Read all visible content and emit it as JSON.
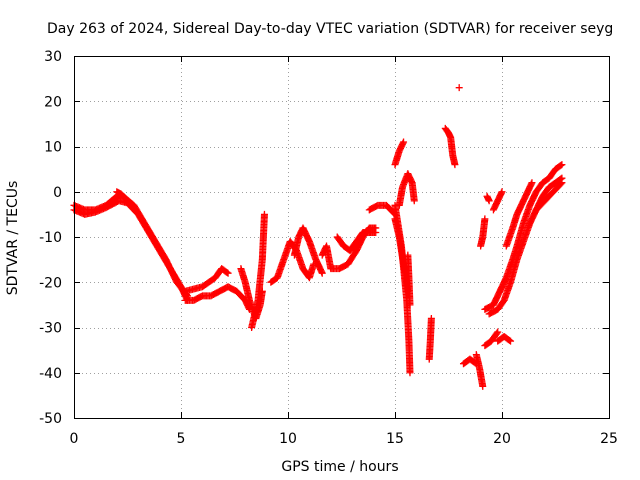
{
  "chart_data": {
    "type": "scatter",
    "title": "Day 263 of 2024, Sidereal Day-to-day VTEC variation (SDTVAR) for receiver seyg",
    "xlabel": "GPS time / hours",
    "ylabel": "SDTVAR / TECUs",
    "xlim": [
      0,
      25
    ],
    "ylim": [
      -50,
      30
    ],
    "xticks": [
      0,
      5,
      10,
      15,
      20,
      25
    ],
    "yticks": [
      -50,
      -40,
      -30,
      -20,
      -10,
      0,
      10,
      20,
      30
    ],
    "grid": true,
    "marker": "+",
    "series": [
      {
        "name": "seyg",
        "color": "#ff0000",
        "tracks": [
          {
            "min_step": 0.05,
            "points": [
              [
                0.0,
                -3.0
              ],
              [
                0.5,
                -4.0
              ],
              [
                1.0,
                -4.0
              ],
              [
                1.5,
                -3.0
              ],
              [
                2.0,
                -1.0
              ],
              [
                2.3,
                -1.0
              ],
              [
                2.8,
                -3.0
              ],
              [
                3.3,
                -7.0
              ],
              [
                3.8,
                -11.0
              ],
              [
                4.3,
                -15.0
              ],
              [
                4.8,
                -20.0
              ],
              [
                5.3,
                -23.0
              ]
            ]
          },
          {
            "min_step": 0.05,
            "points": [
              [
                0.0,
                -4.0
              ],
              [
                0.5,
                -5.0
              ],
              [
                1.0,
                -4.5
              ],
              [
                1.5,
                -3.5
              ],
              [
                2.1,
                -2.0
              ],
              [
                2.5,
                -2.5
              ],
              [
                3.0,
                -5.0
              ],
              [
                3.5,
                -9.0
              ],
              [
                4.0,
                -13.0
              ],
              [
                4.5,
                -17.0
              ],
              [
                5.0,
                -21.0
              ],
              [
                5.3,
                -24.0
              ]
            ]
          },
          {
            "min_step": 0.05,
            "points": [
              [
                2.0,
                0.0
              ],
              [
                2.2,
                -0.5
              ],
              [
                2.4,
                -1.5
              ]
            ]
          },
          {
            "min_step": 0.05,
            "points": [
              [
                5.2,
                -24.0
              ],
              [
                5.6,
                -24.0
              ],
              [
                6.0,
                -23.0
              ],
              [
                6.4,
                -23.0
              ],
              [
                6.8,
                -22.0
              ],
              [
                7.2,
                -21.0
              ],
              [
                7.6,
                -22.0
              ],
              [
                8.0,
                -24.0
              ],
              [
                8.2,
                -26.0
              ]
            ]
          },
          {
            "min_step": 0.05,
            "points": [
              [
                5.2,
                -22.0
              ],
              [
                5.6,
                -21.5
              ],
              [
                6.0,
                -21.0
              ],
              [
                6.3,
                -20.0
              ],
              [
                6.6,
                -19.0
              ],
              [
                6.9,
                -17.0
              ],
              [
                7.2,
                -18.0
              ]
            ]
          },
          {
            "min_step": 0.05,
            "points": [
              [
                7.8,
                -17.0
              ],
              [
                8.0,
                -20.0
              ],
              [
                8.2,
                -24.0
              ],
              [
                8.5,
                -28.0
              ],
              [
                8.7,
                -25.0
              ],
              [
                8.8,
                -22.0
              ]
            ]
          },
          {
            "min_step": 0.05,
            "points": [
              [
                8.3,
                -30.0
              ],
              [
                8.6,
                -24.0
              ],
              [
                8.8,
                -15.0
              ],
              [
                8.9,
                -5.0
              ]
            ]
          },
          {
            "min_step": 0.05,
            "points": [
              [
                9.2,
                -20.0
              ],
              [
                9.5,
                -19.0
              ],
              [
                9.8,
                -15.0
              ],
              [
                10.1,
                -11.0
              ],
              [
                10.4,
                -13.0
              ],
              [
                10.7,
                -17.0
              ],
              [
                11.0,
                -19.0
              ],
              [
                11.2,
                -16.0
              ]
            ]
          },
          {
            "min_step": 0.05,
            "points": [
              [
                10.3,
                -14.0
              ],
              [
                10.5,
                -10.0
              ],
              [
                10.7,
                -8.0
              ],
              [
                11.0,
                -11.0
              ],
              [
                11.3,
                -15.0
              ],
              [
                11.6,
                -18.0
              ]
            ]
          },
          {
            "min_step": 0.05,
            "points": [
              [
                11.6,
                -14.0
              ],
              [
                11.8,
                -12.0
              ],
              [
                12.0,
                -17.0
              ],
              [
                12.4,
                -17.0
              ],
              [
                12.8,
                -16.0
              ],
              [
                13.2,
                -13.0
              ],
              [
                13.5,
                -10.0
              ],
              [
                13.8,
                -8.0
              ],
              [
                14.1,
                -8.0
              ]
            ]
          },
          {
            "min_step": 0.05,
            "points": [
              [
                12.3,
                -10.0
              ],
              [
                12.6,
                -12.0
              ],
              [
                12.9,
                -13.0
              ],
              [
                13.2,
                -11.0
              ],
              [
                13.5,
                -9.0
              ],
              [
                13.8,
                -9.0
              ],
              [
                14.1,
                -9.0
              ]
            ]
          },
          {
            "min_step": 0.05,
            "points": [
              [
                13.8,
                -4.0
              ],
              [
                14.2,
                -3.0
              ],
              [
                14.6,
                -3.0
              ],
              [
                15.0,
                -5.0
              ]
            ]
          },
          {
            "min_step": 0.05,
            "points": [
              [
                15.0,
                -6.0
              ],
              [
                15.2,
                -10.0
              ],
              [
                15.4,
                -16.0
              ],
              [
                15.6,
                -22.0
              ]
            ]
          },
          {
            "min_step": 0.05,
            "points": [
              [
                15.0,
                -3.0
              ],
              [
                15.3,
                -12.0
              ],
              [
                15.55,
                -24.0
              ],
              [
                15.65,
                -33.0
              ],
              [
                15.7,
                -40.0
              ]
            ]
          },
          {
            "min_step": 0.05,
            "points": [
              [
                15.0,
                6.0
              ],
              [
                15.2,
                9.0
              ],
              [
                15.4,
                11.0
              ]
            ]
          },
          {
            "min_step": 0.05,
            "points": [
              [
                15.2,
                -3.0
              ],
              [
                15.35,
                1.0
              ],
              [
                15.6,
                4.0
              ],
              [
                15.8,
                2.0
              ],
              [
                15.9,
                -2.0
              ]
            ]
          },
          {
            "min_step": 0.05,
            "points": [
              [
                15.6,
                -14.0
              ],
              [
                15.65,
                -19.0
              ],
              [
                15.7,
                -25.0
              ]
            ]
          },
          {
            "min_step": 0.05,
            "points": [
              [
                16.6,
                -37.0
              ],
              [
                16.65,
                -33.0
              ],
              [
                16.7,
                -28.0
              ]
            ]
          },
          {
            "min_step": 0.05,
            "points": [
              [
                17.35,
                14.0
              ],
              [
                17.5,
                13.0
              ],
              [
                17.6,
                12.0
              ],
              [
                17.7,
                8.0
              ],
              [
                17.8,
                6.0
              ]
            ]
          },
          {
            "min_step": 0.05,
            "points": [
              [
                18.0,
                23.0
              ]
            ]
          },
          {
            "min_step": 0.05,
            "points": [
              [
                18.2,
                -38.0
              ],
              [
                18.5,
                -37.0
              ],
              [
                18.8,
                -38.0
              ]
            ]
          },
          {
            "min_step": 0.05,
            "points": [
              [
                18.8,
                -36.0
              ],
              [
                18.95,
                -39.0
              ],
              [
                19.1,
                -43.0
              ]
            ]
          },
          {
            "min_step": 0.05,
            "points": [
              [
                19.0,
                -12.0
              ],
              [
                19.1,
                -10.0
              ],
              [
                19.2,
                -6.0
              ]
            ]
          },
          {
            "min_step": 0.05,
            "points": [
              [
                19.3,
                -1.0
              ],
              [
                19.4,
                -2.0
              ]
            ]
          },
          {
            "min_step": 0.05,
            "points": [
              [
                19.6,
                -4.0
              ],
              [
                19.8,
                -2.0
              ],
              [
                20.0,
                0.0
              ]
            ]
          },
          {
            "min_step": 0.05,
            "points": [
              [
                19.2,
                -26.0
              ],
              [
                19.6,
                -25.0
              ],
              [
                19.9,
                -22.0
              ],
              [
                20.2,
                -19.0
              ],
              [
                20.5,
                -15.0
              ],
              [
                20.7,
                -12.0
              ],
              [
                21.0,
                -7.0
              ],
              [
                21.3,
                -3.0
              ],
              [
                21.6,
                0.0
              ],
              [
                21.9,
                2.0
              ],
              [
                22.2,
                3.0
              ],
              [
                22.5,
                5.0
              ],
              [
                22.8,
                6.0
              ]
            ]
          },
          {
            "min_step": 0.05,
            "points": [
              [
                19.4,
                -27.0
              ],
              [
                19.8,
                -26.0
              ],
              [
                20.1,
                -24.0
              ],
              [
                20.4,
                -20.0
              ],
              [
                20.7,
                -15.0
              ],
              [
                21.0,
                -11.0
              ],
              [
                21.3,
                -7.0
              ],
              [
                21.6,
                -4.0
              ],
              [
                21.9,
                -1.0
              ],
              [
                22.2,
                1.0
              ],
              [
                22.5,
                2.0
              ],
              [
                22.8,
                3.0
              ]
            ]
          },
          {
            "min_step": 0.05,
            "points": [
              [
                19.8,
                -33.0
              ],
              [
                20.1,
                -32.0
              ],
              [
                20.4,
                -33.0
              ]
            ]
          },
          {
            "min_step": 0.05,
            "points": [
              [
                19.2,
                -34.0
              ],
              [
                19.5,
                -33.0
              ],
              [
                19.8,
                -31.0
              ]
            ]
          },
          {
            "min_step": 0.05,
            "points": [
              [
                20.2,
                -12.0
              ],
              [
                20.5,
                -8.0
              ],
              [
                20.7,
                -5.0
              ],
              [
                21.0,
                -2.0
              ],
              [
                21.2,
                0.0
              ],
              [
                21.4,
                2.0
              ]
            ]
          },
          {
            "min_step": 0.05,
            "points": [
              [
                21.6,
                -4.0
              ],
              [
                22.0,
                -2.0
              ],
              [
                22.4,
                0.0
              ],
              [
                22.8,
                2.0
              ]
            ]
          }
        ]
      }
    ]
  }
}
